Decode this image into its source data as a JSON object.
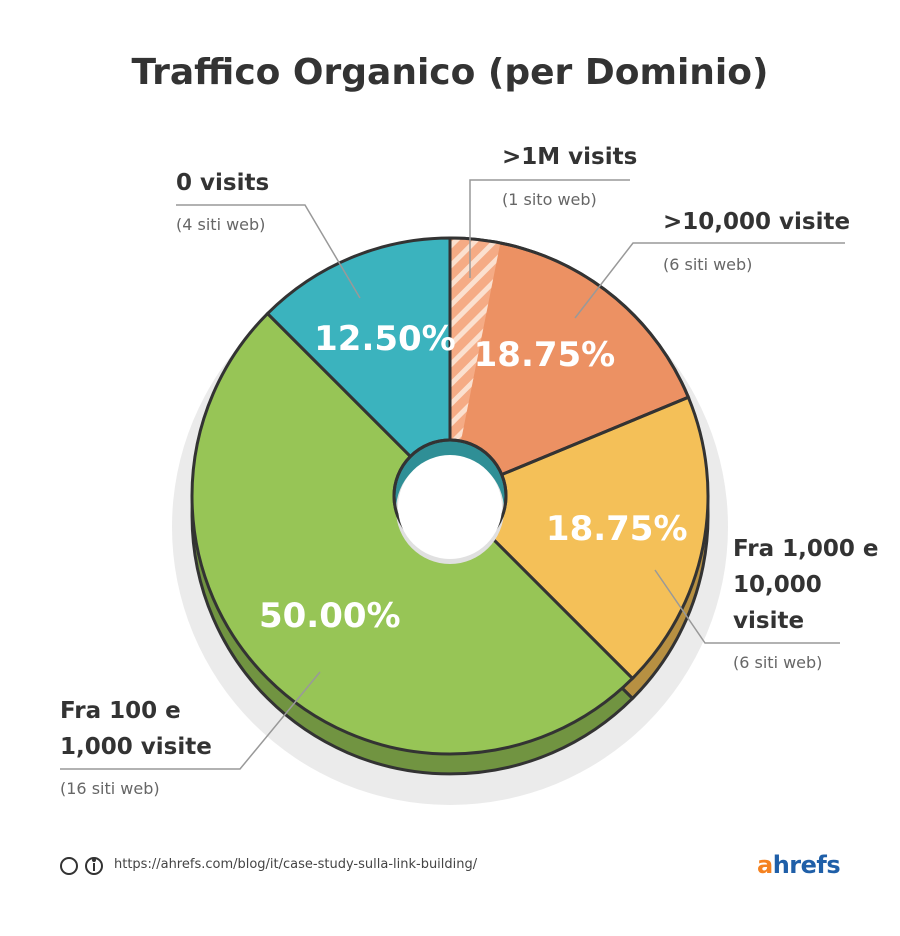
{
  "chart_data": {
    "type": "pie",
    "title": "Traffico Organico (per Dominio)",
    "series": [
      {
        "name": ">10,000 visite",
        "note": "(6 siti web)",
        "value": 18.75,
        "value_label": "18.75%",
        "color": "#ec9163"
      },
      {
        "name": "Fra 1,000 e 10,000 visite",
        "note": "(6 siti web)",
        "value": 18.75,
        "value_label": "18.75%",
        "color": "#f4c058"
      },
      {
        "name": "Fra 100 e 1,000 visite",
        "note": "(16 siti web)",
        "value": 50,
        "value_label": "50.00%",
        "color": "#97c556"
      },
      {
        "name": "0 visits",
        "note": "(4 siti web)",
        "value": 12.5,
        "value_label": "12.50%",
        "color": "#3bb3be"
      }
    ],
    "highlight": {
      "name": ">1M visits",
      "note": "(1 sito web)",
      "value": 3.125,
      "color": "#f5ab85",
      "within": 0
    },
    "footer": {
      "url": "https://ahrefs.com/blog/it/case-study-sulla-link-building/",
      "brand": "ahrefs"
    }
  }
}
